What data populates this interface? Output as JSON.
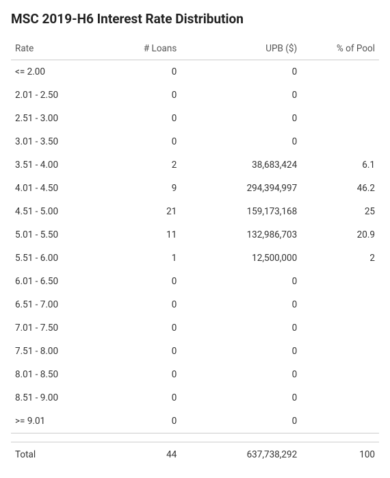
{
  "title": "MSC 2019-H6 Interest Rate Distribution",
  "table": {
    "columns": [
      "Rate",
      "# Loans",
      "UPB ($)",
      "% of Pool"
    ],
    "rows": [
      {
        "rate": "<= 2.00",
        "loans": "0",
        "upb": "0",
        "pct": ""
      },
      {
        "rate": "2.01 - 2.50",
        "loans": "0",
        "upb": "0",
        "pct": ""
      },
      {
        "rate": "2.51 - 3.00",
        "loans": "0",
        "upb": "0",
        "pct": ""
      },
      {
        "rate": "3.01 - 3.50",
        "loans": "0",
        "upb": "0",
        "pct": ""
      },
      {
        "rate": "3.51 - 4.00",
        "loans": "2",
        "upb": "38,683,424",
        "pct": "6.1"
      },
      {
        "rate": "4.01 - 4.50",
        "loans": "9",
        "upb": "294,394,997",
        "pct": "46.2"
      },
      {
        "rate": "4.51 - 5.00",
        "loans": "21",
        "upb": "159,173,168",
        "pct": "25"
      },
      {
        "rate": "5.01 - 5.50",
        "loans": "11",
        "upb": "132,986,703",
        "pct": "20.9"
      },
      {
        "rate": "5.51 - 6.00",
        "loans": "1",
        "upb": "12,500,000",
        "pct": "2"
      },
      {
        "rate": "6.01 - 6.50",
        "loans": "0",
        "upb": "0",
        "pct": ""
      },
      {
        "rate": "6.51 - 7.00",
        "loans": "0",
        "upb": "0",
        "pct": ""
      },
      {
        "rate": "7.01 - 7.50",
        "loans": "0",
        "upb": "0",
        "pct": ""
      },
      {
        "rate": "7.51 - 8.00",
        "loans": "0",
        "upb": "0",
        "pct": ""
      },
      {
        "rate": "8.01 - 8.50",
        "loans": "0",
        "upb": "0",
        "pct": ""
      },
      {
        "rate": "8.51 - 9.00",
        "loans": "0",
        "upb": "0",
        "pct": ""
      },
      {
        "rate": ">= 9.01",
        "loans": "0",
        "upb": "0",
        "pct": ""
      }
    ],
    "total": {
      "label": "Total",
      "loans": "44",
      "upb": "637,738,292",
      "pct": "100"
    }
  }
}
